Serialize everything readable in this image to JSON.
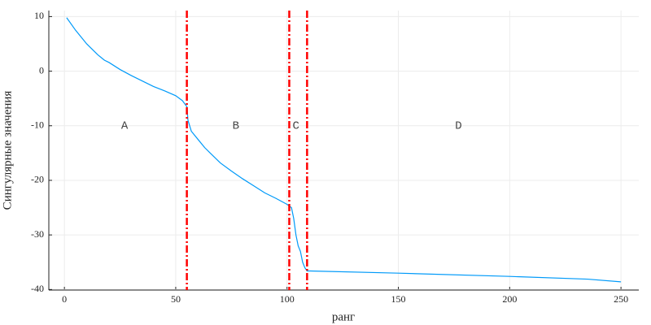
{
  "chart_data": {
    "type": "line",
    "xlabel": "ранг",
    "ylabel": "Сингулярные значения",
    "x": [
      1,
      5,
      10,
      15,
      18,
      20,
      25,
      30,
      35,
      40,
      45,
      50,
      53,
      55,
      55.5,
      57,
      60,
      63,
      65,
      70,
      75,
      80,
      85,
      90,
      95,
      100,
      102,
      103,
      104,
      105,
      106,
      107,
      108,
      109,
      110,
      150,
      200,
      235,
      250
    ],
    "series": [
      {
        "color": "#009af9",
        "values": [
          9.8,
          7.5,
          5,
          3,
          2,
          1.6,
          0.3,
          -0.8,
          -1.8,
          -2.8,
          -3.6,
          -4.5,
          -5.4,
          -6.5,
          -9,
          -11,
          -12.5,
          -14,
          -14.8,
          -16.8,
          -18.3,
          -19.7,
          -21,
          -22.3,
          -23.3,
          -24.4,
          -25,
          -27,
          -30,
          -32,
          -33,
          -35,
          -36,
          -36.6,
          -36.6,
          -37,
          -37.6,
          -38.1,
          -38.6
        ]
      }
    ],
    "vlines": [
      55,
      101,
      109
    ],
    "vline_color": "#ff0000",
    "annotations": [
      {
        "text": "A",
        "x": 27,
        "y": -10
      },
      {
        "text": "B",
        "x": 77,
        "y": -10
      },
      {
        "text": "C",
        "x": 104,
        "y": -10
      },
      {
        "text": "D",
        "x": 177,
        "y": -10
      }
    ],
    "xlim": [
      -7,
      258
    ],
    "ylim": [
      -40.1,
      11.1
    ],
    "xticks": [
      0,
      50,
      100,
      150,
      200,
      250
    ],
    "yticks": [
      10,
      0,
      -10,
      -20,
      -30,
      -40
    ],
    "grid": true
  }
}
